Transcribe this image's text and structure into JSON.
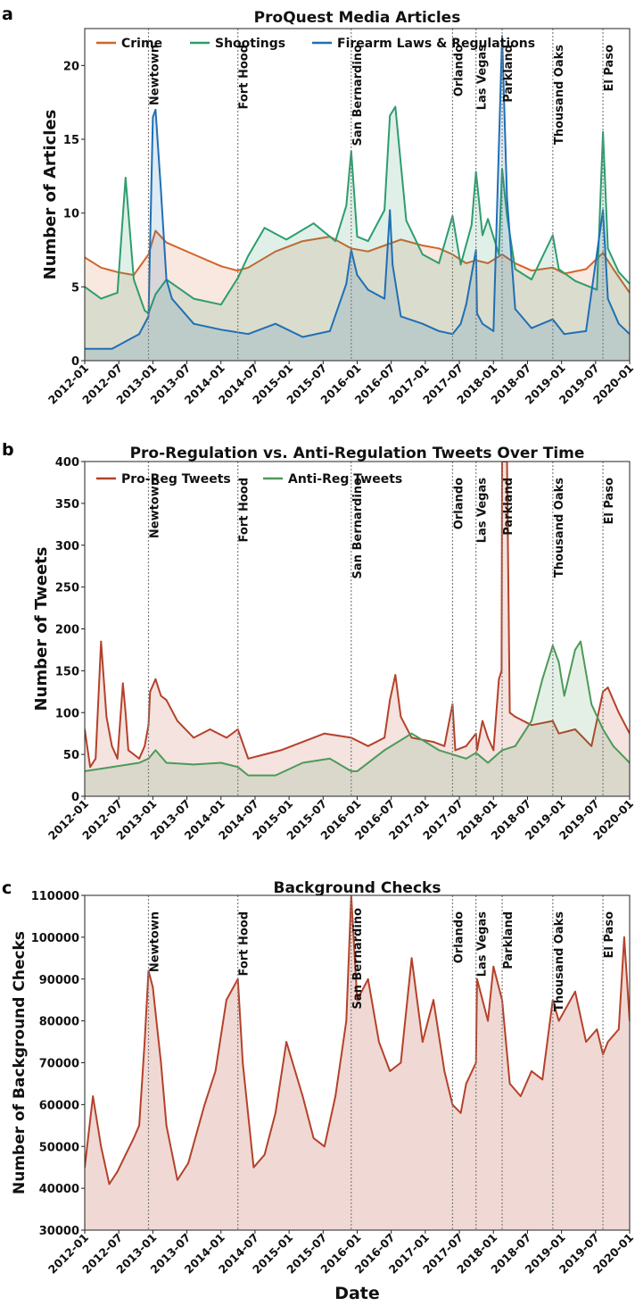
{
  "colors": {
    "crime": "#d2642a",
    "shootings": "#2d9d6e",
    "firearm": "#1f6fb4",
    "pro": "#b5412a",
    "anti": "#4c9a5a",
    "checks": "#b5412a",
    "vline": "#808080"
  },
  "date_ticks": [
    "2012-01",
    "2012-07",
    "2013-01",
    "2013-07",
    "2014-01",
    "2014-07",
    "2015-01",
    "2015-07",
    "2016-01",
    "2016-07",
    "2017-01",
    "2017-07",
    "2018-01",
    "2018-07",
    "2019-01",
    "2019-07",
    "2020-01"
  ],
  "events": [
    {
      "name": "Newtown",
      "t": 0.117
    },
    {
      "name": "Fort Hood",
      "t": 0.281
    },
    {
      "name": "San Bernardino",
      "t": 0.489
    },
    {
      "name": "Orlando",
      "t": 0.675
    },
    {
      "name": "Las Vegas",
      "t": 0.718
    },
    {
      "name": "Parkland",
      "t": 0.766
    },
    {
      "name": "Thousand Oaks",
      "t": 0.859
    },
    {
      "name": "El Paso",
      "t": 0.951
    }
  ],
  "xlabel": "Date",
  "chart_data": [
    {
      "panel": "a",
      "type": "line",
      "title": "ProQuest Media Articles",
      "ylabel": "Number of Articles",
      "ylim": [
        0,
        22.5
      ],
      "yticks": [
        0,
        5,
        10,
        15,
        20
      ],
      "legend": [
        "Crime",
        "Shootings",
        "Firearm Laws & Regulations"
      ],
      "series": [
        {
          "name": "Crime",
          "color": "crime",
          "x": [
            0,
            0.03,
            0.06,
            0.09,
            0.117,
            0.13,
            0.15,
            0.2,
            0.25,
            0.28,
            0.3,
            0.35,
            0.4,
            0.45,
            0.489,
            0.52,
            0.55,
            0.58,
            0.62,
            0.65,
            0.675,
            0.7,
            0.718,
            0.74,
            0.766,
            0.79,
            0.82,
            0.859,
            0.88,
            0.92,
            0.951,
            0.97,
            1.0
          ],
          "values": [
            7,
            6.3,
            6,
            5.8,
            7.2,
            8.8,
            8,
            7.2,
            6.4,
            6.1,
            6.3,
            7.4,
            8.1,
            8.4,
            7.6,
            7.4,
            7.8,
            8.2,
            7.8,
            7.6,
            7.2,
            6.6,
            6.8,
            6.6,
            7.2,
            6.6,
            6.1,
            6.3,
            5.9,
            6.2,
            7.3,
            6.2,
            4.6
          ]
        },
        {
          "name": "Shootings",
          "color": "shootings",
          "x": [
            0,
            0.03,
            0.06,
            0.075,
            0.09,
            0.11,
            0.117,
            0.13,
            0.15,
            0.2,
            0.25,
            0.281,
            0.3,
            0.33,
            0.37,
            0.42,
            0.46,
            0.48,
            0.489,
            0.5,
            0.52,
            0.55,
            0.56,
            0.57,
            0.59,
            0.62,
            0.65,
            0.675,
            0.69,
            0.71,
            0.718,
            0.73,
            0.74,
            0.76,
            0.766,
            0.775,
            0.79,
            0.82,
            0.859,
            0.87,
            0.9,
            0.94,
            0.951,
            0.96,
            0.98,
            1.0
          ],
          "values": [
            5,
            4.2,
            4.6,
            12.4,
            5.5,
            3.4,
            3.2,
            4.5,
            5.5,
            4.2,
            3.8,
            5.6,
            7.1,
            9,
            8.2,
            9.3,
            8.1,
            10.5,
            14.2,
            8.4,
            8.1,
            10.2,
            16.6,
            17.2,
            9.5,
            7.2,
            6.6,
            9.8,
            6.5,
            9.2,
            12.8,
            8.5,
            9.6,
            7.2,
            13,
            9.8,
            6.2,
            5.5,
            8.5,
            6.2,
            5.4,
            4.8,
            15.5,
            7.6,
            6,
            5.2
          ]
        },
        {
          "name": "Firearm Laws & Regulations",
          "color": "firearm",
          "x": [
            0,
            0.05,
            0.1,
            0.117,
            0.125,
            0.13,
            0.14,
            0.15,
            0.16,
            0.2,
            0.25,
            0.3,
            0.35,
            0.4,
            0.45,
            0.48,
            0.489,
            0.5,
            0.52,
            0.55,
            0.56,
            0.565,
            0.58,
            0.62,
            0.65,
            0.675,
            0.69,
            0.7,
            0.718,
            0.72,
            0.73,
            0.75,
            0.766,
            0.775,
            0.79,
            0.82,
            0.859,
            0.88,
            0.92,
            0.951,
            0.96,
            0.98,
            1.0
          ],
          "values": [
            0.8,
            0.8,
            1.8,
            3,
            16.5,
            17,
            11.5,
            5.5,
            4.2,
            2.5,
            2.1,
            1.8,
            2.5,
            1.6,
            2,
            5.2,
            7.5,
            5.8,
            4.8,
            4.2,
            10.2,
            6.5,
            3,
            2.5,
            2,
            1.8,
            2.5,
            3.8,
            7.5,
            3.2,
            2.5,
            2,
            22,
            11,
            3.5,
            2.2,
            2.8,
            1.8,
            2,
            10.2,
            4.2,
            2.5,
            1.8
          ]
        }
      ]
    },
    {
      "panel": "b",
      "type": "line",
      "title": "Pro-Regulation vs. Anti-Regulation Tweets Over Time",
      "ylabel": "Number of Tweets",
      "ylim": [
        0,
        400
      ],
      "yticks": [
        0,
        50,
        100,
        150,
        200,
        250,
        300,
        350,
        400
      ],
      "legend": [
        "Pro-Reg Tweets",
        "Anti-Reg Tweets"
      ],
      "series": [
        {
          "name": "Pro-Reg Tweets",
          "color": "pro",
          "x": [
            0,
            0.01,
            0.02,
            0.03,
            0.04,
            0.05,
            0.06,
            0.07,
            0.075,
            0.08,
            0.09,
            0.1,
            0.11,
            0.117,
            0.12,
            0.13,
            0.14,
            0.15,
            0.17,
            0.2,
            0.23,
            0.26,
            0.281,
            0.3,
            0.33,
            0.36,
            0.4,
            0.44,
            0.489,
            0.52,
            0.55,
            0.56,
            0.57,
            0.58,
            0.6,
            0.64,
            0.66,
            0.675,
            0.68,
            0.7,
            0.718,
            0.72,
            0.73,
            0.74,
            0.75,
            0.76,
            0.765,
            0.766,
            0.775,
            0.78,
            0.79,
            0.82,
            0.859,
            0.87,
            0.9,
            0.93,
            0.951,
            0.96,
            0.98,
            1.0
          ],
          "values": [
            80,
            35,
            45,
            185,
            95,
            60,
            45,
            135,
            100,
            55,
            50,
            45,
            60,
            85,
            125,
            140,
            120,
            115,
            90,
            70,
            80,
            70,
            80,
            45,
            50,
            55,
            65,
            75,
            70,
            60,
            70,
            115,
            145,
            95,
            70,
            65,
            60,
            110,
            55,
            60,
            75,
            55,
            90,
            70,
            55,
            140,
            150,
            400,
            400,
            100,
            95,
            85,
            90,
            75,
            80,
            60,
            125,
            130,
            100,
            75
          ]
        },
        {
          "name": "Anti-Reg Tweets",
          "color": "anti",
          "x": [
            0,
            0.05,
            0.1,
            0.117,
            0.13,
            0.15,
            0.2,
            0.25,
            0.281,
            0.3,
            0.35,
            0.4,
            0.45,
            0.489,
            0.5,
            0.55,
            0.6,
            0.65,
            0.675,
            0.7,
            0.718,
            0.74,
            0.766,
            0.79,
            0.82,
            0.84,
            0.859,
            0.87,
            0.88,
            0.9,
            0.91,
            0.93,
            0.951,
            0.97,
            1.0
          ],
          "values": [
            30,
            35,
            40,
            45,
            55,
            40,
            38,
            40,
            35,
            25,
            25,
            40,
            45,
            30,
            30,
            55,
            75,
            55,
            50,
            45,
            52,
            40,
            55,
            60,
            90,
            140,
            180,
            160,
            120,
            175,
            185,
            110,
            80,
            60,
            40
          ]
        }
      ]
    },
    {
      "panel": "c",
      "type": "area",
      "title": "Background Checks",
      "ylabel": "Number of Background Checks",
      "ylim": [
        30000,
        110000
      ],
      "yticks": [
        30000,
        40000,
        50000,
        60000,
        70000,
        80000,
        90000,
        100000,
        110000
      ],
      "series": [
        {
          "name": "Background Checks",
          "color": "checks",
          "x": [
            0,
            0.015,
            0.03,
            0.045,
            0.06,
            0.075,
            0.09,
            0.1,
            0.11,
            0.117,
            0.125,
            0.13,
            0.14,
            0.15,
            0.17,
            0.19,
            0.22,
            0.24,
            0.26,
            0.281,
            0.29,
            0.31,
            0.33,
            0.35,
            0.37,
            0.4,
            0.42,
            0.44,
            0.46,
            0.48,
            0.489,
            0.5,
            0.52,
            0.54,
            0.56,
            0.58,
            0.6,
            0.62,
            0.64,
            0.66,
            0.675,
            0.69,
            0.7,
            0.718,
            0.72,
            0.74,
            0.75,
            0.766,
            0.78,
            0.8,
            0.82,
            0.84,
            0.859,
            0.87,
            0.9,
            0.92,
            0.94,
            0.951,
            0.96,
            0.98,
            0.99,
            1.0
          ],
          "values": [
            45000,
            62000,
            50000,
            41000,
            44000,
            48000,
            52000,
            55000,
            75000,
            92000,
            88000,
            82000,
            70000,
            55000,
            42000,
            46000,
            60000,
            68000,
            85000,
            90000,
            70000,
            45000,
            48000,
            58000,
            75000,
            62000,
            52000,
            50000,
            62000,
            80000,
            110000,
            85000,
            90000,
            75000,
            68000,
            70000,
            95000,
            75000,
            85000,
            68000,
            60000,
            58000,
            65000,
            70000,
            90000,
            80000,
            93000,
            85000,
            65000,
            62000,
            68000,
            66000,
            85000,
            80000,
            87000,
            75000,
            78000,
            72000,
            75000,
            78000,
            100000,
            80000
          ]
        }
      ]
    }
  ],
  "panels": [
    {
      "letter": "a",
      "title": "ProQuest Media Articles",
      "ylabel": "Number of Articles",
      "legend": [
        "Crime",
        "Shootings",
        "Firearm Laws & Regulations"
      ]
    },
    {
      "letter": "b",
      "title": "Pro-Regulation vs. Anti-Regulation Tweets Over Time",
      "ylabel": "Number of Tweets",
      "legend": [
        "Pro-Reg Tweets",
        "Anti-Reg Tweets"
      ]
    },
    {
      "letter": "c",
      "title": "Background Checks",
      "ylabel": "Number of Background Checks",
      "legend": []
    }
  ]
}
